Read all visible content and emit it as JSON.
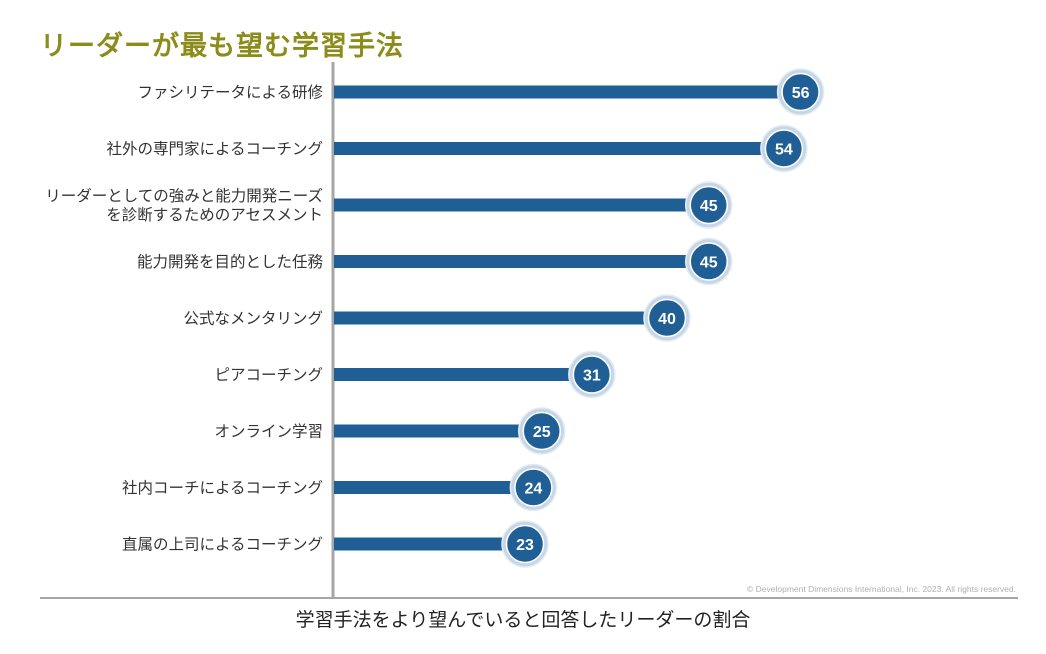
{
  "page": {
    "title": "リーダーが最も望む学習手法",
    "copyright": "© Development Dimensions International, Inc. 2023. All rights reserved."
  },
  "colors": {
    "bar": "#1f5f96",
    "title": "#8c8c1a",
    "axis": "#a6a6a6",
    "badge_ring": "#c6d6e6"
  },
  "chart_data": {
    "type": "bar",
    "orientation": "horizontal",
    "title": "リーダーが最も望む学習手法",
    "xlabel": "学習手法をより望んでいると回答したリーダーの割合",
    "ylabel": "",
    "xlim": [
      0,
      70
    ],
    "grid": false,
    "categories": [
      [
        "ファシリテータによる研修"
      ],
      [
        "社外の専門家によるコーチング"
      ],
      [
        "リーダーとしての強みと能力開発ニーズ",
        "を診断するためのアセスメント"
      ],
      [
        "能力開発を目的とした任務"
      ],
      [
        "公式なメンタリング"
      ],
      [
        "ピアコーチング"
      ],
      [
        "オンライン学習"
      ],
      [
        "社内コーチによるコーチング"
      ],
      [
        "直属の上司によるコーチング"
      ]
    ],
    "values": [
      56,
      54,
      45,
      45,
      40,
      31,
      25,
      24,
      23
    ]
  }
}
